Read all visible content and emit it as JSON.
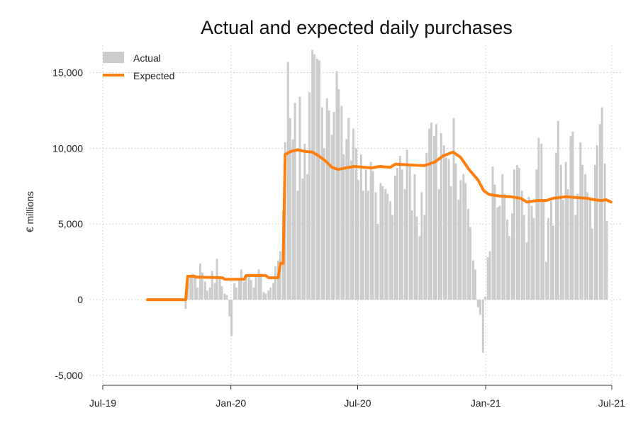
{
  "chart_data": {
    "type": "bar",
    "title": "Actual and expected daily purchases",
    "xlabel": "",
    "ylabel": "€ millions",
    "ylim": [
      -5000,
      16800
    ],
    "yticks": [
      -5000,
      0,
      5000,
      10000,
      15000
    ],
    "ytick_labels": [
      "-5,000",
      "0",
      "5,000",
      "10,000",
      "15,000"
    ],
    "xlim": [
      "2019-07-01",
      "2021-07-01"
    ],
    "xticks": [
      "2019-07-01",
      "2020-01-01",
      "2020-07-01",
      "2021-01-01",
      "2021-07-01"
    ],
    "xtick_labels": [
      "Jul-19",
      "Jan-20",
      "Jul-20",
      "Jan-21",
      "Jul-21"
    ],
    "grid": true,
    "legend_position": "top-left",
    "colors": {
      "actual": "#cccccc",
      "expected": "#ff7f0e"
    },
    "series": [
      {
        "name": "Actual",
        "type": "bar",
        "points": [
          [
            "2019-10-28",
            -600
          ],
          [
            "2019-10-31",
            1300
          ],
          [
            "2019-11-04",
            1500
          ],
          [
            "2019-11-07",
            1700
          ],
          [
            "2019-11-11",
            1600
          ],
          [
            "2019-11-14",
            800
          ],
          [
            "2019-11-18",
            2400
          ],
          [
            "2019-11-21",
            1800
          ],
          [
            "2019-11-25",
            1200
          ],
          [
            "2019-11-28",
            600
          ],
          [
            "2019-12-02",
            800
          ],
          [
            "2019-12-05",
            1900
          ],
          [
            "2019-12-09",
            1100
          ],
          [
            "2019-12-12",
            2700
          ],
          [
            "2019-12-16",
            1500
          ],
          [
            "2019-12-19",
            900
          ],
          [
            "2019-12-23",
            400
          ],
          [
            "2019-12-26",
            300
          ],
          [
            "2019-12-30",
            -1100
          ],
          [
            "2020-01-02",
            -2400
          ],
          [
            "2020-01-06",
            1100
          ],
          [
            "2020-01-09",
            800
          ],
          [
            "2020-01-13",
            1400
          ],
          [
            "2020-01-16",
            2000
          ],
          [
            "2020-01-20",
            1200
          ],
          [
            "2020-01-23",
            1500
          ],
          [
            "2020-01-27",
            1700
          ],
          [
            "2020-01-30",
            1300
          ],
          [
            "2020-02-03",
            800
          ],
          [
            "2020-02-06",
            1500
          ],
          [
            "2020-02-10",
            2000
          ],
          [
            "2020-02-13",
            1700
          ],
          [
            "2020-02-17",
            500
          ],
          [
            "2020-02-20",
            400
          ],
          [
            "2020-02-24",
            600
          ],
          [
            "2020-02-27",
            800
          ],
          [
            "2020-03-02",
            1100
          ],
          [
            "2020-03-05",
            2200
          ],
          [
            "2020-03-09",
            2600
          ],
          [
            "2020-03-12",
            3200
          ],
          [
            "2020-03-16",
            5900
          ],
          [
            "2020-03-19",
            10400
          ],
          [
            "2020-03-23",
            15700
          ],
          [
            "2020-03-26",
            12000
          ],
          [
            "2020-03-30",
            10600
          ],
          [
            "2020-04-02",
            13000
          ],
          [
            "2020-04-06",
            7200
          ],
          [
            "2020-04-09",
            13400
          ],
          [
            "2020-04-13",
            8000
          ],
          [
            "2020-04-16",
            10300
          ],
          [
            "2020-04-20",
            8300
          ],
          [
            "2020-04-23",
            13700
          ],
          [
            "2020-04-27",
            16500
          ],
          [
            "2020-04-30",
            16200
          ],
          [
            "2020-05-04",
            15900
          ],
          [
            "2020-05-07",
            15800
          ],
          [
            "2020-05-11",
            12700
          ],
          [
            "2020-05-14",
            10000
          ],
          [
            "2020-05-18",
            13300
          ],
          [
            "2020-05-21",
            12500
          ],
          [
            "2020-05-25",
            10900
          ],
          [
            "2020-05-28",
            12400
          ],
          [
            "2020-06-01",
            15100
          ],
          [
            "2020-06-04",
            13900
          ],
          [
            "2020-06-08",
            12800
          ],
          [
            "2020-06-11",
            9600
          ],
          [
            "2020-06-15",
            10600
          ],
          [
            "2020-06-18",
            12000
          ],
          [
            "2020-06-22",
            9200
          ],
          [
            "2020-06-25",
            11300
          ],
          [
            "2020-06-29",
            10000
          ],
          [
            "2020-07-02",
            7900
          ],
          [
            "2020-07-06",
            9600
          ],
          [
            "2020-07-09",
            7200
          ],
          [
            "2020-07-13",
            8600
          ],
          [
            "2020-07-16",
            7200
          ],
          [
            "2020-07-20",
            9100
          ],
          [
            "2020-07-23",
            8500
          ],
          [
            "2020-07-27",
            7100
          ],
          [
            "2020-07-30",
            5000
          ],
          [
            "2020-08-03",
            7700
          ],
          [
            "2020-08-06",
            7500
          ],
          [
            "2020-08-10",
            7300
          ],
          [
            "2020-08-13",
            7000
          ],
          [
            "2020-08-17",
            6500
          ],
          [
            "2020-08-20",
            5600
          ],
          [
            "2020-08-24",
            8200
          ],
          [
            "2020-08-27",
            8700
          ],
          [
            "2020-08-31",
            9500
          ],
          [
            "2020-09-03",
            8600
          ],
          [
            "2020-09-07",
            7300
          ],
          [
            "2020-09-10",
            9900
          ],
          [
            "2020-09-14",
            8800
          ],
          [
            "2020-09-17",
            5900
          ],
          [
            "2020-09-21",
            8300
          ],
          [
            "2020-09-24",
            5500
          ],
          [
            "2020-09-28",
            4200
          ],
          [
            "2020-10-01",
            7100
          ],
          [
            "2020-10-05",
            5600
          ],
          [
            "2020-10-08",
            9700
          ],
          [
            "2020-10-12",
            11300
          ],
          [
            "2020-10-15",
            11700
          ],
          [
            "2020-10-19",
            10800
          ],
          [
            "2020-10-22",
            11600
          ],
          [
            "2020-10-26",
            7300
          ],
          [
            "2020-10-29",
            11000
          ],
          [
            "2020-11-02",
            10200
          ],
          [
            "2020-11-05",
            9400
          ],
          [
            "2020-11-09",
            9300
          ],
          [
            "2020-11-12",
            7500
          ],
          [
            "2020-11-16",
            12000
          ],
          [
            "2020-11-19",
            9000
          ],
          [
            "2020-11-23",
            6600
          ],
          [
            "2020-11-26",
            7900
          ],
          [
            "2020-11-30",
            8300
          ],
          [
            "2020-12-03",
            7700
          ],
          [
            "2020-12-07",
            6000
          ],
          [
            "2020-12-10",
            4800
          ],
          [
            "2020-12-14",
            2600
          ],
          [
            "2020-12-17",
            2000
          ],
          [
            "2020-12-21",
            -500
          ],
          [
            "2020-12-24",
            -1000
          ],
          [
            "2020-12-28",
            -3500
          ],
          [
            "2020-12-31",
            200
          ],
          [
            "2021-01-04",
            2800
          ],
          [
            "2021-01-07",
            3200
          ],
          [
            "2021-01-11",
            8800
          ],
          [
            "2021-01-14",
            7600
          ],
          [
            "2021-01-18",
            6100
          ],
          [
            "2021-01-21",
            6200
          ],
          [
            "2021-01-25",
            8300
          ],
          [
            "2021-01-28",
            7000
          ],
          [
            "2021-02-01",
            5300
          ],
          [
            "2021-02-04",
            4200
          ],
          [
            "2021-02-08",
            5700
          ],
          [
            "2021-02-11",
            8600
          ],
          [
            "2021-02-15",
            8900
          ],
          [
            "2021-02-18",
            8700
          ],
          [
            "2021-02-22",
            7200
          ],
          [
            "2021-02-25",
            5600
          ],
          [
            "2021-03-01",
            3800
          ],
          [
            "2021-03-04",
            6800
          ],
          [
            "2021-03-08",
            6200
          ],
          [
            "2021-03-11",
            5400
          ],
          [
            "2021-03-15",
            8600
          ],
          [
            "2021-03-18",
            10700
          ],
          [
            "2021-03-22",
            10300
          ],
          [
            "2021-03-25",
            6500
          ],
          [
            "2021-03-29",
            2500
          ],
          [
            "2021-04-01",
            5400
          ],
          [
            "2021-04-05",
            6500
          ],
          [
            "2021-04-08",
            4900
          ],
          [
            "2021-04-12",
            9700
          ],
          [
            "2021-04-15",
            11800
          ],
          [
            "2021-04-19",
            8900
          ],
          [
            "2021-04-22",
            6600
          ],
          [
            "2021-04-26",
            9100
          ],
          [
            "2021-04-29",
            7300
          ],
          [
            "2021-05-03",
            10800
          ],
          [
            "2021-05-06",
            11100
          ],
          [
            "2021-05-10",
            5600
          ],
          [
            "2021-05-13",
            7000
          ],
          [
            "2021-05-17",
            10400
          ],
          [
            "2021-05-20",
            8900
          ],
          [
            "2021-05-24",
            8300
          ],
          [
            "2021-05-27",
            7100
          ],
          [
            "2021-05-31",
            6600
          ],
          [
            "2021-06-03",
            4700
          ],
          [
            "2021-06-07",
            8900
          ],
          [
            "2021-06-10",
            10200
          ],
          [
            "2021-06-14",
            11600
          ],
          [
            "2021-06-17",
            12700
          ],
          [
            "2021-06-21",
            9000
          ],
          [
            "2021-06-24",
            5200
          ]
        ]
      },
      {
        "name": "Expected",
        "type": "line",
        "points": [
          [
            "2019-09-03",
            0
          ],
          [
            "2019-10-28",
            0
          ],
          [
            "2019-10-31",
            1550
          ],
          [
            "2019-11-10",
            1550
          ],
          [
            "2019-11-11",
            1500
          ],
          [
            "2019-12-20",
            1450
          ],
          [
            "2019-12-23",
            1350
          ],
          [
            "2020-01-20",
            1350
          ],
          [
            "2020-01-23",
            1600
          ],
          [
            "2020-02-20",
            1600
          ],
          [
            "2020-02-24",
            1450
          ],
          [
            "2020-03-09",
            1450
          ],
          [
            "2020-03-12",
            2400
          ],
          [
            "2020-03-16",
            2400
          ],
          [
            "2020-03-19",
            9600
          ],
          [
            "2020-03-28",
            9800
          ],
          [
            "2020-04-06",
            9900
          ],
          [
            "2020-04-15",
            9800
          ],
          [
            "2020-04-27",
            9750
          ],
          [
            "2020-05-06",
            9500
          ],
          [
            "2020-05-15",
            9200
          ],
          [
            "2020-05-25",
            8750
          ],
          [
            "2020-06-03",
            8600
          ],
          [
            "2020-06-14",
            8700
          ],
          [
            "2020-06-26",
            8800
          ],
          [
            "2020-07-10",
            8750
          ],
          [
            "2020-07-21",
            8700
          ],
          [
            "2020-08-01",
            8800
          ],
          [
            "2020-08-17",
            8750
          ],
          [
            "2020-08-24",
            8950
          ],
          [
            "2020-09-15",
            8900
          ],
          [
            "2020-10-05",
            8850
          ],
          [
            "2020-10-20",
            9100
          ],
          [
            "2020-11-01",
            9500
          ],
          [
            "2020-11-15",
            9750
          ],
          [
            "2020-11-26",
            9400
          ],
          [
            "2020-12-08",
            8600
          ],
          [
            "2020-12-21",
            7900
          ],
          [
            "2020-12-29",
            7200
          ],
          [
            "2021-01-06",
            6950
          ],
          [
            "2021-01-20",
            6850
          ],
          [
            "2021-02-06",
            6800
          ],
          [
            "2021-02-20",
            6700
          ],
          [
            "2021-03-01",
            6450
          ],
          [
            "2021-03-16",
            6550
          ],
          [
            "2021-03-29",
            6550
          ],
          [
            "2021-04-08",
            6700
          ],
          [
            "2021-04-26",
            6800
          ],
          [
            "2021-05-10",
            6750
          ],
          [
            "2021-05-26",
            6700
          ],
          [
            "2021-06-06",
            6600
          ],
          [
            "2021-06-16",
            6550
          ],
          [
            "2021-06-23",
            6600
          ],
          [
            "2021-06-30",
            6450
          ]
        ]
      }
    ]
  }
}
